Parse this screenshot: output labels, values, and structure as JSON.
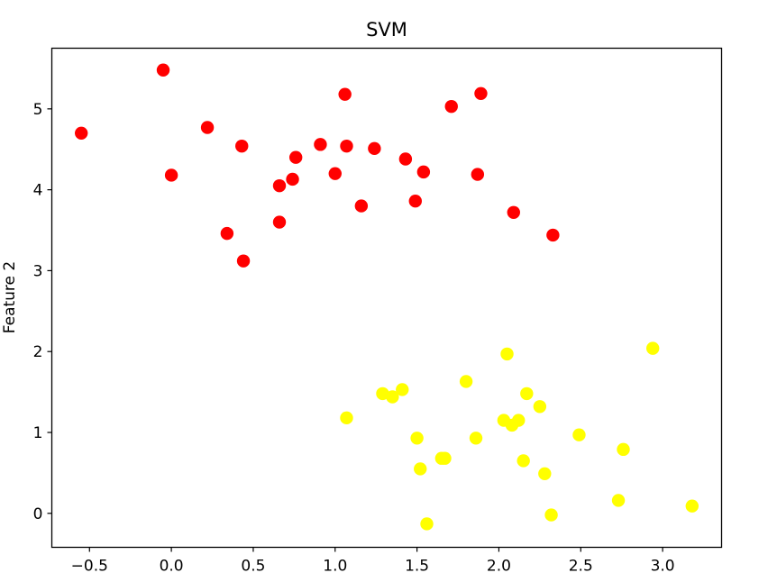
{
  "chart_data": {
    "type": "scatter",
    "title": "SVM",
    "xlabel": "",
    "ylabel": "Feature 2",
    "xlim": [
      -0.73,
      3.36
    ],
    "ylim": [
      -0.42,
      5.75
    ],
    "xticks": [
      -0.5,
      0.0,
      0.5,
      1.0,
      1.5,
      2.0,
      2.5,
      3.0
    ],
    "xtick_labels": [
      "−0.5",
      "0.0",
      "0.5",
      "1.0",
      "1.5",
      "2.0",
      "2.5",
      "3.0"
    ],
    "yticks": [
      0,
      1,
      2,
      3,
      4,
      5
    ],
    "ytick_labels": [
      "0",
      "1",
      "2",
      "3",
      "4",
      "5"
    ],
    "grid": false,
    "series": [
      {
        "color": "#ff0000",
        "points": [
          [
            -0.55,
            4.7
          ],
          [
            -0.05,
            5.48
          ],
          [
            0.0,
            4.18
          ],
          [
            0.22,
            4.77
          ],
          [
            0.34,
            3.46
          ],
          [
            0.43,
            4.54
          ],
          [
            0.44,
            3.12
          ],
          [
            0.66,
            4.05
          ],
          [
            0.66,
            3.6
          ],
          [
            0.74,
            4.13
          ],
          [
            0.76,
            4.4
          ],
          [
            0.91,
            4.56
          ],
          [
            1.0,
            4.2
          ],
          [
            1.06,
            5.18
          ],
          [
            1.07,
            4.54
          ],
          [
            1.16,
            3.8
          ],
          [
            1.24,
            4.51
          ],
          [
            1.43,
            4.38
          ],
          [
            1.49,
            3.86
          ],
          [
            1.54,
            4.22
          ],
          [
            1.71,
            5.03
          ],
          [
            1.87,
            4.19
          ],
          [
            1.89,
            5.19
          ],
          [
            2.09,
            3.72
          ],
          [
            2.33,
            3.44
          ]
        ]
      },
      {
        "color": "#ffff00",
        "points": [
          [
            1.07,
            1.18
          ],
          [
            1.29,
            1.48
          ],
          [
            1.35,
            1.44
          ],
          [
            1.41,
            1.53
          ],
          [
            1.5,
            0.93
          ],
          [
            1.52,
            0.55
          ],
          [
            1.56,
            -0.13
          ],
          [
            1.65,
            0.68
          ],
          [
            1.67,
            0.68
          ],
          [
            1.8,
            1.63
          ],
          [
            1.86,
            0.93
          ],
          [
            2.03,
            1.15
          ],
          [
            2.05,
            1.97
          ],
          [
            2.08,
            1.09
          ],
          [
            2.12,
            1.15
          ],
          [
            2.15,
            0.65
          ],
          [
            2.17,
            1.48
          ],
          [
            2.25,
            1.32
          ],
          [
            2.28,
            0.49
          ],
          [
            2.32,
            -0.02
          ],
          [
            2.49,
            0.97
          ],
          [
            2.73,
            0.16
          ],
          [
            2.76,
            0.79
          ],
          [
            2.94,
            2.04
          ],
          [
            3.18,
            0.09
          ]
        ]
      }
    ]
  }
}
